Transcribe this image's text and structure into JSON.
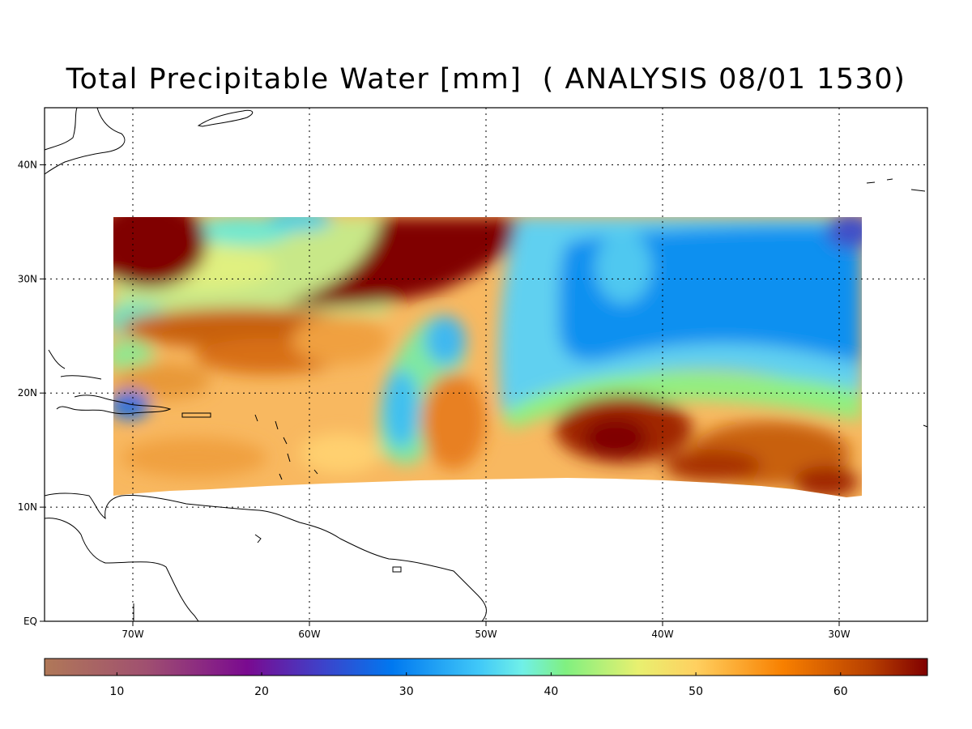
{
  "title": "Total Precipitable Water [mm]  ( ANALYSIS 08/01 1530)",
  "map": {
    "lon_range": [
      -75,
      -25
    ],
    "lat_range": [
      0,
      45
    ],
    "lon_ticks": [
      {
        "value": -70,
        "label": "70W"
      },
      {
        "value": -60,
        "label": "60W"
      },
      {
        "value": -50,
        "label": "50W"
      },
      {
        "value": -40,
        "label": "40W"
      },
      {
        "value": -30,
        "label": "30W"
      }
    ],
    "lat_ticks": [
      {
        "value": 0,
        "label": "EQ"
      },
      {
        "value": 10,
        "label": "10N"
      },
      {
        "value": 20,
        "label": "20N"
      },
      {
        "value": 30,
        "label": "30N"
      },
      {
        "value": 40,
        "label": "40N"
      }
    ],
    "grid": "dotted"
  },
  "colorbar": {
    "range": [
      5,
      66
    ],
    "ticks": [
      {
        "value": 10,
        "label": "10"
      },
      {
        "value": 20,
        "label": "20"
      },
      {
        "value": 30,
        "label": "30"
      },
      {
        "value": 40,
        "label": "40"
      },
      {
        "value": 50,
        "label": "50"
      },
      {
        "value": 60,
        "label": "60"
      }
    ],
    "stops": [
      {
        "value": 5,
        "color": "#b07858"
      },
      {
        "value": 12,
        "color": "#a05070"
      },
      {
        "value": 19,
        "color": "#7a0a90"
      },
      {
        "value": 24,
        "color": "#4040c8"
      },
      {
        "value": 29,
        "color": "#0078f0"
      },
      {
        "value": 35,
        "color": "#40c8f8"
      },
      {
        "value": 38,
        "color": "#70f0e8"
      },
      {
        "value": 41,
        "color": "#80f080"
      },
      {
        "value": 46,
        "color": "#e8f070"
      },
      {
        "value": 50,
        "color": "#ffd060"
      },
      {
        "value": 56,
        "color": "#f88000"
      },
      {
        "value": 62,
        "color": "#b84000"
      },
      {
        "value": 66,
        "color": "#800000"
      }
    ]
  },
  "colors": {
    "land_outline": "#000000",
    "background": "#ffffff"
  }
}
